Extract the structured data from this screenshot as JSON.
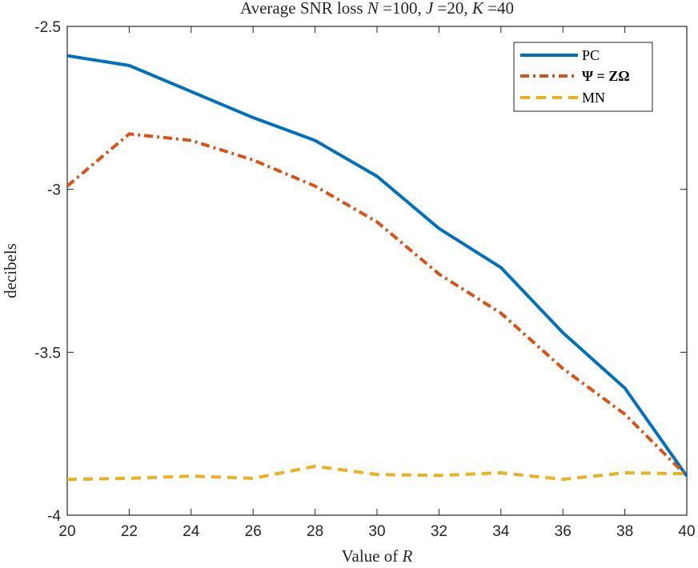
{
  "chart_data": {
    "type": "line",
    "title": "Average SNR loss N =100, J =20, K =40",
    "title_parts": {
      "prefix": "Average SNR loss ",
      "terms": [
        {
          "var": "N",
          "value": "=100"
        },
        {
          "var": "J",
          "value": "=20"
        },
        {
          "var": "K",
          "value": "=40"
        }
      ]
    },
    "xlabel": "Value of R",
    "xlabel_parts": {
      "text": "Value of ",
      "var": "R"
    },
    "ylabel": "decibels",
    "x": [
      20,
      22,
      24,
      26,
      28,
      30,
      32,
      34,
      36,
      38,
      40
    ],
    "xlim": [
      20,
      40
    ],
    "ylim": [
      -4,
      -2.5
    ],
    "xticks": [
      20,
      22,
      24,
      26,
      28,
      30,
      32,
      34,
      36,
      38,
      40
    ],
    "yticks": [
      -4,
      -3.5,
      -3,
      -2.5
    ],
    "ytick_labels": [
      "-4",
      "-3.5",
      "-3",
      "-2.5"
    ],
    "grid": false,
    "legend_position": "top-right",
    "series": [
      {
        "name": "PC",
        "color": "#0072BD",
        "style": "solid",
        "values": [
          -2.59,
          -2.62,
          -2.7,
          -2.78,
          -2.85,
          -2.96,
          -3.12,
          -3.24,
          -3.44,
          -3.61,
          -3.88
        ]
      },
      {
        "name": "Ψ = ZΩ",
        "color": "#D95319",
        "style": "dashdot",
        "values": [
          -2.99,
          -2.83,
          -2.85,
          -2.91,
          -2.99,
          -3.1,
          -3.26,
          -3.38,
          -3.55,
          -3.69,
          -3.88
        ]
      },
      {
        "name": "MN",
        "color": "#EDB120",
        "style": "dashed",
        "values": [
          -3.89,
          -3.887,
          -3.88,
          -3.887,
          -3.85,
          -3.875,
          -3.878,
          -3.87,
          -3.89,
          -3.87,
          -3.873
        ]
      }
    ]
  }
}
